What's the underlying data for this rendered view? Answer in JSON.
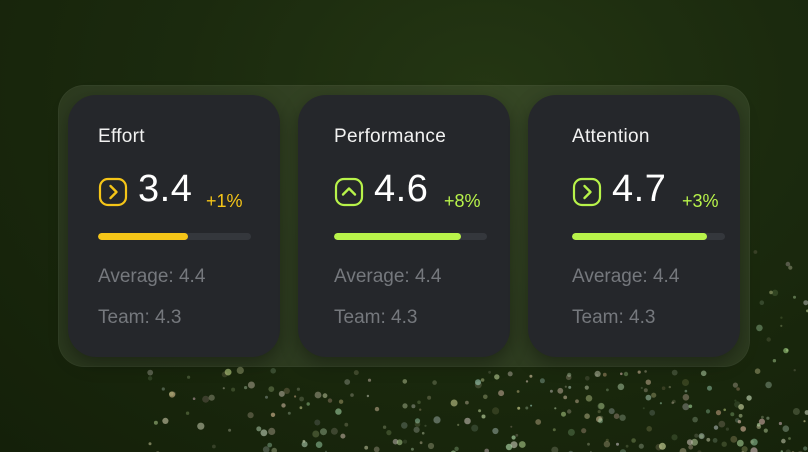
{
  "colors": {
    "warning": "#f5c518",
    "positive": "#b8f34a",
    "card_bg": "#25272b",
    "track": "#34373c",
    "muted_text": "#75787d"
  },
  "cards": [
    {
      "title": "Effort",
      "icon": "chevron-right-icon",
      "value": "3.4",
      "change": "+1%",
      "accent": "#f5c518",
      "progress_fraction": 0.59,
      "average": "Average: 4.4",
      "team": "Team: 4.3"
    },
    {
      "title": "Performance",
      "icon": "chevron-up-icon",
      "value": "4.6",
      "change": "+8%",
      "accent": "#b8f34a",
      "progress_fraction": 0.83,
      "average": "Average: 4.4",
      "team": "Team: 4.3"
    },
    {
      "title": "Attention",
      "icon": "chevron-right-icon",
      "value": "4.7",
      "change": "+3%",
      "accent": "#b8f34a",
      "progress_fraction": 0.88,
      "average": "Average: 4.4",
      "team": "Team: 4.3"
    }
  ]
}
